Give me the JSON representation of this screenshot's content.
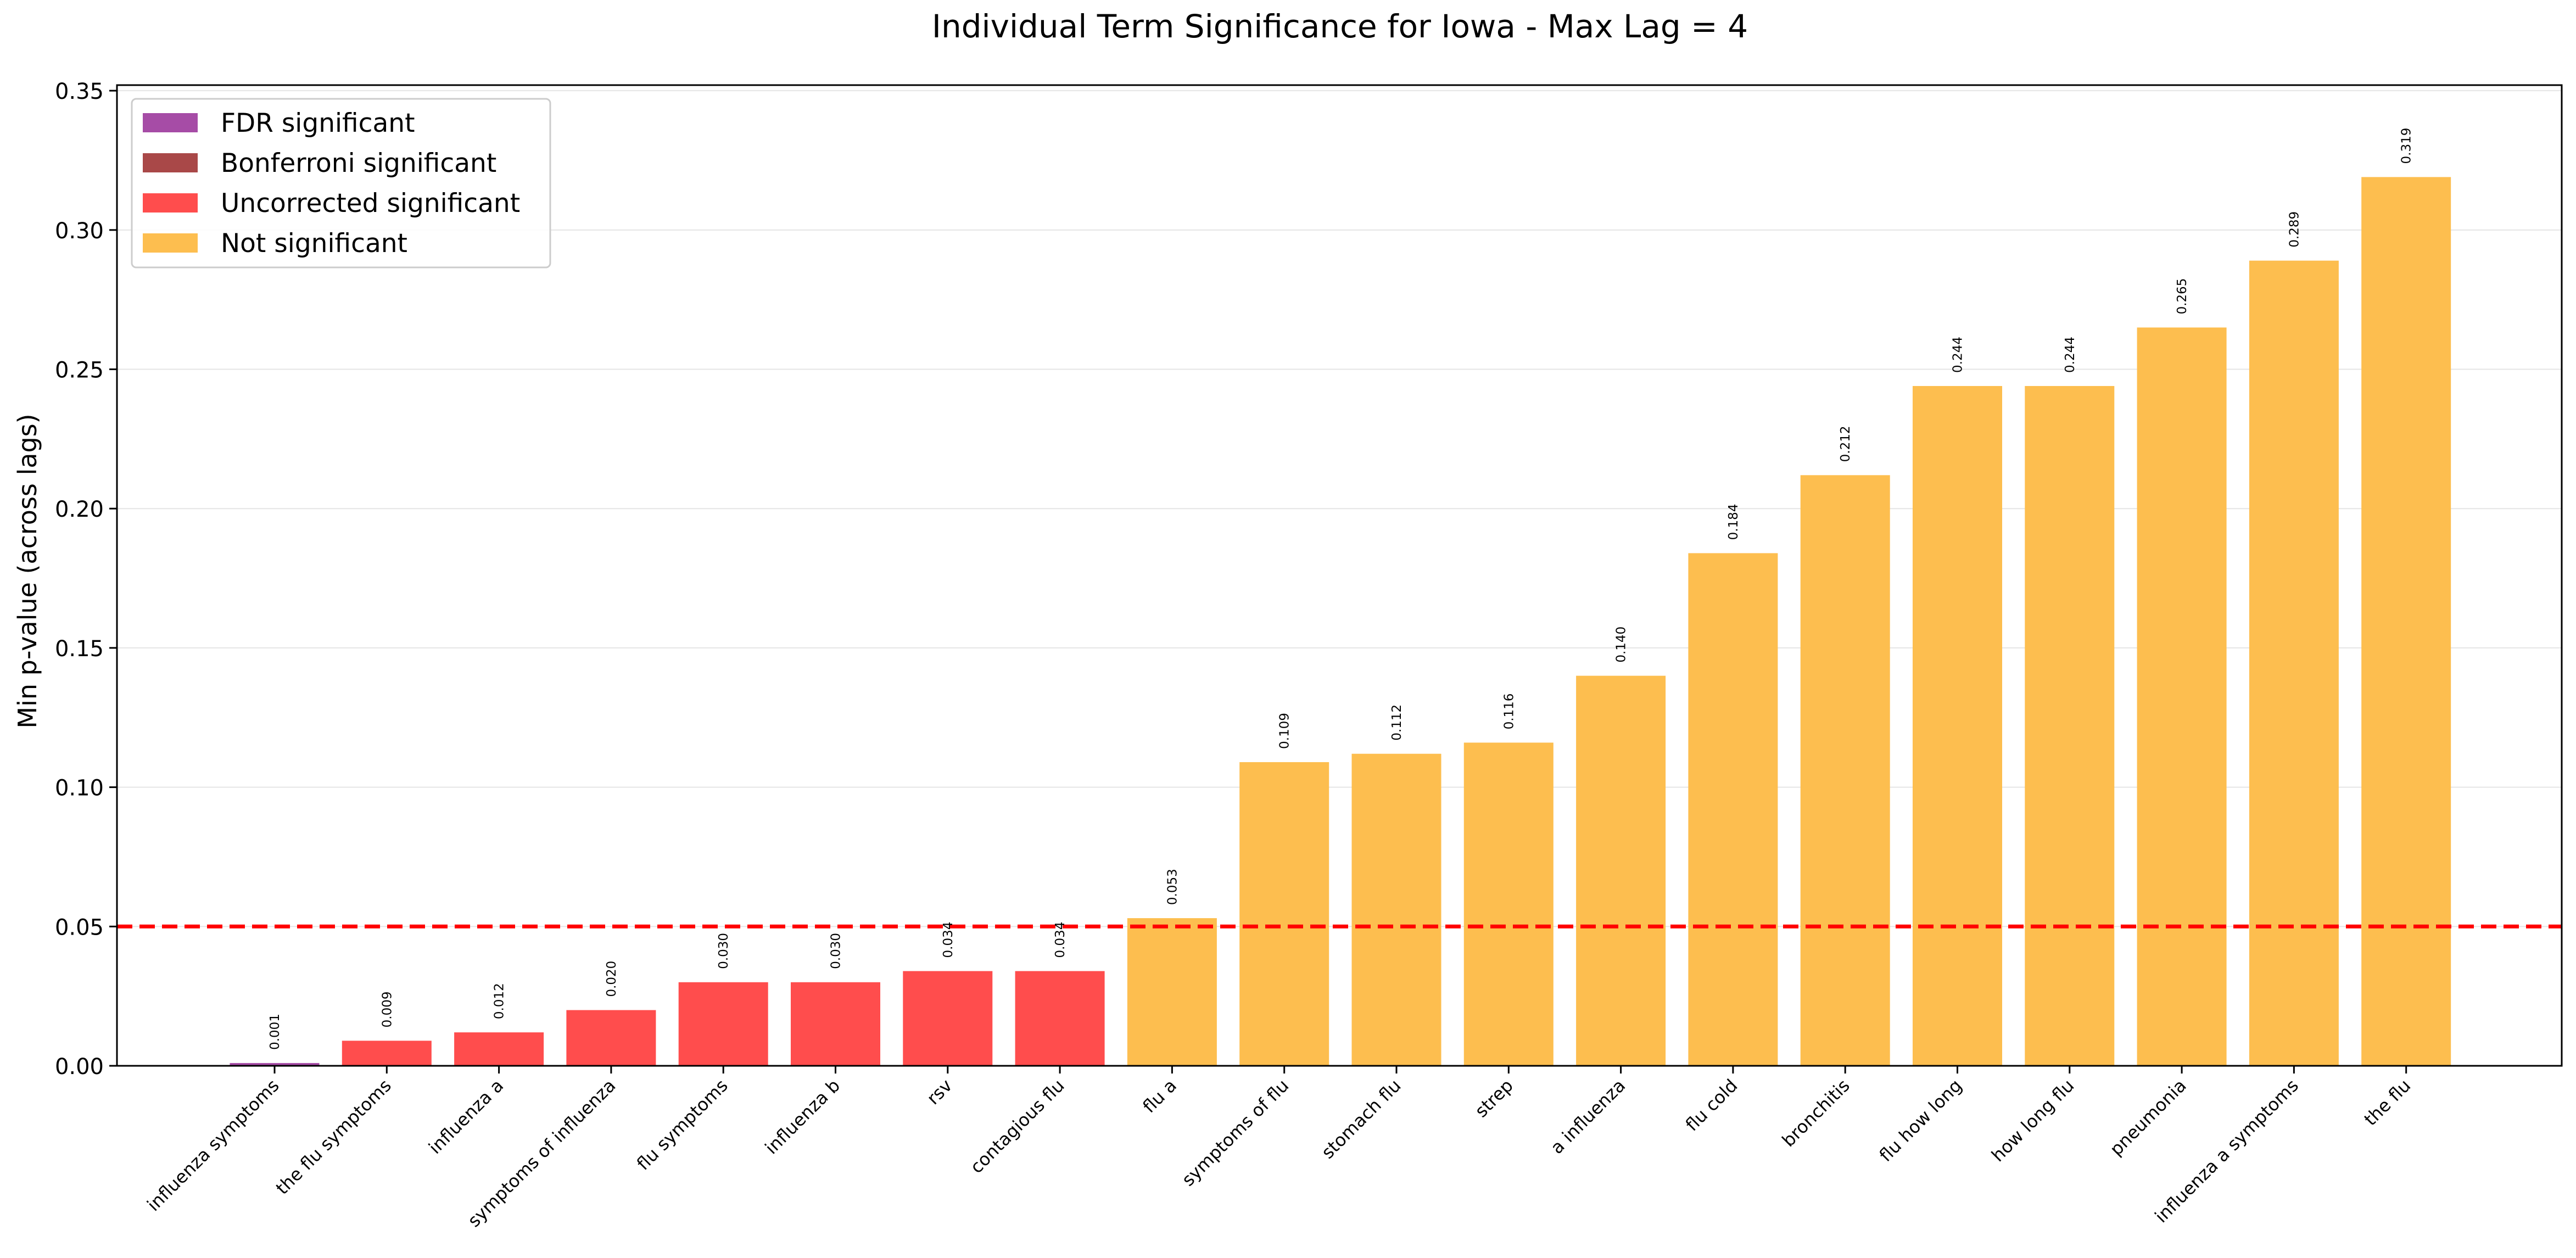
{
  "chart_data": {
    "type": "bar",
    "title": "Individual Term Significance for Iowa - Max Lag = 4",
    "xlabel": "",
    "ylabel": "Min p-value (across lags)",
    "ylim": [
      0,
      0.352
    ],
    "yticks": [
      "0.00",
      "0.05",
      "0.10",
      "0.15",
      "0.20",
      "0.25",
      "0.30",
      "0.35"
    ],
    "grid": "y-axis only",
    "legend_position": "top-left",
    "threshold": {
      "value": 0.05,
      "color": "#ff0000",
      "style": "dashed"
    },
    "legend": [
      {
        "label": "FDR significant",
        "color": "#a64ca6"
      },
      {
        "label": "Bonferroni significant",
        "color": "#a94848"
      },
      {
        "label": "Uncorrected significant",
        "color": "#ff4d4d"
      },
      {
        "label": "Not significant",
        "color": "#fdbe4f"
      }
    ],
    "categories": [
      "influenza symptoms",
      "the flu symptoms",
      "influenza a",
      "symptoms of influenza",
      "flu symptoms",
      "influenza b",
      "rsv",
      "contagious flu",
      "flu a",
      "symptoms of flu",
      "stomach flu",
      "strep",
      "a influenza",
      "flu cold",
      "bronchitis",
      "flu how long",
      "how long flu",
      "pneumonia",
      "influenza a symptoms",
      "the flu"
    ],
    "values": [
      0.001,
      0.009,
      0.012,
      0.02,
      0.03,
      0.03,
      0.034,
      0.034,
      0.053,
      0.109,
      0.112,
      0.116,
      0.14,
      0.184,
      0.212,
      0.244,
      0.244,
      0.265,
      0.289,
      0.319
    ],
    "value_labels": [
      "0.001",
      "0.009",
      "0.012",
      "0.020",
      "0.030",
      "0.030",
      "0.034",
      "0.034",
      "0.053",
      "0.109",
      "0.112",
      "0.116",
      "0.140",
      "0.184",
      "0.212",
      "0.244",
      "0.244",
      "0.265",
      "0.289",
      "0.319"
    ],
    "significance": [
      "FDR significant",
      "Uncorrected significant",
      "Uncorrected significant",
      "Uncorrected significant",
      "Uncorrected significant",
      "Uncorrected significant",
      "Uncorrected significant",
      "Uncorrected significant",
      "Not significant",
      "Not significant",
      "Not significant",
      "Not significant",
      "Not significant",
      "Not significant",
      "Not significant",
      "Not significant",
      "Not significant",
      "Not significant",
      "Not significant",
      "Not significant"
    ]
  }
}
